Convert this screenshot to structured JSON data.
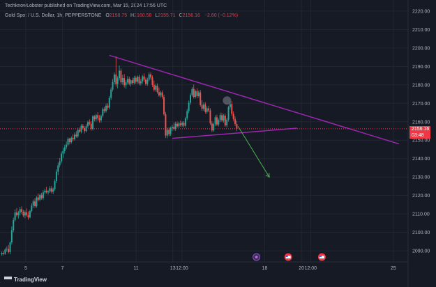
{
  "header": {
    "publisher": "TechknowLobster published on TradingView.com, Mar 15, 2024 17:56 UTC"
  },
  "symbol_bar": {
    "title": "Gold Spot / U.S. Dollar, 1h, PEPPERSTONE",
    "o_label": "O",
    "o_value": "2158.75",
    "h_label": "H",
    "h_value": "2160.58",
    "l_label": "L",
    "l_value": "2155.71",
    "c_label": "C",
    "c_value": "2156.16",
    "change": "−2.60 (−0.12%)"
  },
  "price_tag": {
    "price": "2156.16",
    "countdown": "03:48"
  },
  "footer": {
    "logo_text": "TradingView"
  },
  "colors": {
    "background": "#161a25",
    "up": "#26a69a",
    "down": "#ef5350",
    "trendline": "#9c27b0",
    "arrow": "#4caf50",
    "price_line": "#f23645"
  },
  "chart_data": {
    "type": "candlestick",
    "y_axis_labels": [
      2220,
      2210,
      2200,
      2190,
      2180,
      2170,
      2160,
      2150,
      2140,
      2130,
      2120,
      2110,
      2100,
      2090
    ],
    "ylim": [
      2084,
      2226
    ],
    "x_axis_labels": [
      "5",
      "7",
      "11",
      "13",
      "12:00",
      "18",
      "20",
      "12:00",
      "25"
    ],
    "x_axis_positions": [
      5,
      7,
      11,
      13,
      13.5,
      18,
      20,
      20.5,
      25
    ],
    "xlim": [
      3.6,
      25.8
    ],
    "grid": true,
    "price_line_value": 2156.16,
    "candle_width_units": 0.075,
    "candles": [
      {
        "x": 3.7,
        "o": 2088.2,
        "h": 2089.6,
        "l": 2087.4,
        "c": 2088.9
      },
      {
        "x": 3.79,
        "o": 2088.9,
        "h": 2090.0,
        "l": 2087.6,
        "c": 2088.4
      },
      {
        "x": 3.88,
        "o": 2088.4,
        "h": 2091.5,
        "l": 2087.9,
        "c": 2090.8
      },
      {
        "x": 3.97,
        "o": 2090.8,
        "h": 2092.4,
        "l": 2089.5,
        "c": 2091.1
      },
      {
        "x": 4.06,
        "o": 2091.1,
        "h": 2093.2,
        "l": 2088.6,
        "c": 2089.3
      },
      {
        "x": 4.15,
        "o": 2089.3,
        "h": 2095.2,
        "l": 2088.2,
        "c": 2094.6
      },
      {
        "x": 4.24,
        "o": 2094.6,
        "h": 2103.2,
        "l": 2093.5,
        "c": 2101.2
      },
      {
        "x": 4.33,
        "o": 2101.2,
        "h": 2108.0,
        "l": 2100.1,
        "c": 2106.7
      },
      {
        "x": 4.42,
        "o": 2106.7,
        "h": 2112.5,
        "l": 2105.8,
        "c": 2110.8
      },
      {
        "x": 4.51,
        "o": 2110.8,
        "h": 2113.2,
        "l": 2108.4,
        "c": 2109.3
      },
      {
        "x": 4.6,
        "o": 2109.3,
        "h": 2111.6,
        "l": 2107.5,
        "c": 2110.7
      },
      {
        "x": 4.69,
        "o": 2110.7,
        "h": 2113.8,
        "l": 2109.2,
        "c": 2112.6
      },
      {
        "x": 4.78,
        "o": 2112.6,
        "h": 2114.1,
        "l": 2110.1,
        "c": 2111.2
      },
      {
        "x": 4.87,
        "o": 2111.2,
        "h": 2112.2,
        "l": 2108.3,
        "c": 2109.2
      },
      {
        "x": 4.96,
        "o": 2109.2,
        "h": 2111.9,
        "l": 2107.7,
        "c": 2110.9
      },
      {
        "x": 5.05,
        "o": 2110.9,
        "h": 2113.0,
        "l": 2108.6,
        "c": 2109.4
      },
      {
        "x": 5.14,
        "o": 2109.4,
        "h": 2111.4,
        "l": 2106.9,
        "c": 2108.1
      },
      {
        "x": 5.23,
        "o": 2108.1,
        "h": 2112.3,
        "l": 2107.6,
        "c": 2111.6
      },
      {
        "x": 5.32,
        "o": 2111.6,
        "h": 2115.8,
        "l": 2110.8,
        "c": 2114.5
      },
      {
        "x": 5.41,
        "o": 2114.5,
        "h": 2117.8,
        "l": 2113.3,
        "c": 2116.8
      },
      {
        "x": 5.5,
        "o": 2116.8,
        "h": 2118.5,
        "l": 2113.3,
        "c": 2114.2
      },
      {
        "x": 5.59,
        "o": 2114.2,
        "h": 2119.7,
        "l": 2113.4,
        "c": 2118.9
      },
      {
        "x": 5.68,
        "o": 2118.9,
        "h": 2121.1,
        "l": 2116.8,
        "c": 2117.7
      },
      {
        "x": 5.77,
        "o": 2117.7,
        "h": 2121.0,
        "l": 2116.9,
        "c": 2120.3
      },
      {
        "x": 5.86,
        "o": 2120.3,
        "h": 2121.4,
        "l": 2117.8,
        "c": 2118.6
      },
      {
        "x": 5.95,
        "o": 2118.6,
        "h": 2122.9,
        "l": 2117.5,
        "c": 2121.7
      },
      {
        "x": 6.04,
        "o": 2121.7,
        "h": 2123.8,
        "l": 2120.8,
        "c": 2122.6
      },
      {
        "x": 6.13,
        "o": 2122.6,
        "h": 2124.7,
        "l": 2121.1,
        "c": 2121.7
      },
      {
        "x": 6.22,
        "o": 2121.7,
        "h": 2123.1,
        "l": 2120.5,
        "c": 2122.3
      },
      {
        "x": 6.31,
        "o": 2122.3,
        "h": 2125.1,
        "l": 2121.4,
        "c": 2123.9
      },
      {
        "x": 6.4,
        "o": 2123.9,
        "h": 2125.1,
        "l": 2121.2,
        "c": 2122.1
      },
      {
        "x": 6.49,
        "o": 2122.1,
        "h": 2124.3,
        "l": 2120.9,
        "c": 2123.4
      },
      {
        "x": 6.58,
        "o": 2123.4,
        "h": 2128.8,
        "l": 2122.6,
        "c": 2127.8
      },
      {
        "x": 6.67,
        "o": 2127.8,
        "h": 2134.2,
        "l": 2126.7,
        "c": 2132.9
      },
      {
        "x": 6.76,
        "o": 2132.9,
        "h": 2137.8,
        "l": 2131.1,
        "c": 2136.4
      },
      {
        "x": 6.85,
        "o": 2136.4,
        "h": 2140.3,
        "l": 2135.2,
        "c": 2138.6
      },
      {
        "x": 6.94,
        "o": 2138.6,
        "h": 2143.8,
        "l": 2137.5,
        "c": 2142.7
      },
      {
        "x": 7.03,
        "o": 2142.7,
        "h": 2145.8,
        "l": 2140.4,
        "c": 2144.1
      },
      {
        "x": 7.12,
        "o": 2144.1,
        "h": 2147.6,
        "l": 2142.7,
        "c": 2146.2
      },
      {
        "x": 7.21,
        "o": 2146.2,
        "h": 2149.3,
        "l": 2145.1,
        "c": 2147.6
      },
      {
        "x": 7.3,
        "o": 2147.6,
        "h": 2151.5,
        "l": 2146.8,
        "c": 2150.8
      },
      {
        "x": 7.39,
        "o": 2150.8,
        "h": 2151.3,
        "l": 2147.7,
        "c": 2148.9
      },
      {
        "x": 7.48,
        "o": 2148.9,
        "h": 2152.0,
        "l": 2148.1,
        "c": 2151.3
      },
      {
        "x": 7.57,
        "o": 2151.3,
        "h": 2153.2,
        "l": 2149.4,
        "c": 2150.5
      },
      {
        "x": 7.66,
        "o": 2150.5,
        "h": 2154.2,
        "l": 2149.7,
        "c": 2153.0
      },
      {
        "x": 7.75,
        "o": 2153.0,
        "h": 2154.9,
        "l": 2151.4,
        "c": 2152.1
      },
      {
        "x": 7.84,
        "o": 2152.1,
        "h": 2156.8,
        "l": 2151.2,
        "c": 2155.6
      },
      {
        "x": 7.93,
        "o": 2155.6,
        "h": 2156.9,
        "l": 2153.9,
        "c": 2154.6
      },
      {
        "x": 8.02,
        "o": 2154.6,
        "h": 2158.8,
        "l": 2153.7,
        "c": 2157.8
      },
      {
        "x": 8.11,
        "o": 2157.8,
        "h": 2158.8,
        "l": 2155.7,
        "c": 2156.5
      },
      {
        "x": 8.2,
        "o": 2156.5,
        "h": 2157.6,
        "l": 2153.7,
        "c": 2154.9
      },
      {
        "x": 8.29,
        "o": 2154.9,
        "h": 2158.7,
        "l": 2154.2,
        "c": 2157.6
      },
      {
        "x": 8.38,
        "o": 2157.6,
        "h": 2160.6,
        "l": 2156.6,
        "c": 2159.8
      },
      {
        "x": 8.47,
        "o": 2159.8,
        "h": 2161.3,
        "l": 2158.0,
        "c": 2158.9
      },
      {
        "x": 8.56,
        "o": 2158.9,
        "h": 2160.3,
        "l": 2155.1,
        "c": 2156.2
      },
      {
        "x": 8.65,
        "o": 2156.2,
        "h": 2163.7,
        "l": 2155.3,
        "c": 2162.9
      },
      {
        "x": 8.74,
        "o": 2162.9,
        "h": 2163.6,
        "l": 2160.2,
        "c": 2161.3
      },
      {
        "x": 8.83,
        "o": 2161.3,
        "h": 2164.3,
        "l": 2160.1,
        "c": 2163.6
      },
      {
        "x": 8.92,
        "o": 2163.6,
        "h": 2165.2,
        "l": 2160.6,
        "c": 2162.0
      },
      {
        "x": 9.01,
        "o": 2162.0,
        "h": 2163.6,
        "l": 2159.5,
        "c": 2160.8
      },
      {
        "x": 9.1,
        "o": 2160.8,
        "h": 2164.0,
        "l": 2159.6,
        "c": 2163.2
      },
      {
        "x": 9.19,
        "o": 2163.2,
        "h": 2167.8,
        "l": 2162.3,
        "c": 2166.9
      },
      {
        "x": 9.28,
        "o": 2166.9,
        "h": 2168.1,
        "l": 2164.7,
        "c": 2165.8
      },
      {
        "x": 9.37,
        "o": 2165.8,
        "h": 2169.8,
        "l": 2164.9,
        "c": 2168.7
      },
      {
        "x": 9.46,
        "o": 2168.7,
        "h": 2170.0,
        "l": 2166.4,
        "c": 2167.6
      },
      {
        "x": 9.55,
        "o": 2167.6,
        "h": 2174.0,
        "l": 2166.7,
        "c": 2172.9
      },
      {
        "x": 9.64,
        "o": 2172.9,
        "h": 2178.6,
        "l": 2171.8,
        "c": 2177.4
      },
      {
        "x": 9.73,
        "o": 2177.4,
        "h": 2183.2,
        "l": 2176.4,
        "c": 2181.5
      },
      {
        "x": 9.82,
        "o": 2181.5,
        "h": 2186.7,
        "l": 2180.1,
        "c": 2185.6
      },
      {
        "x": 9.91,
        "o": 2185.6,
        "h": 2195.5,
        "l": 2179.0,
        "c": 2180.4
      },
      {
        "x": 10.0,
        "o": 2180.4,
        "h": 2184.7,
        "l": 2178.1,
        "c": 2183.6
      },
      {
        "x": 10.09,
        "o": 2183.6,
        "h": 2190.5,
        "l": 2182.4,
        "c": 2187.7
      },
      {
        "x": 10.18,
        "o": 2187.7,
        "h": 2188.9,
        "l": 2180.2,
        "c": 2181.4
      },
      {
        "x": 10.27,
        "o": 2181.4,
        "h": 2185.4,
        "l": 2180.1,
        "c": 2183.7
      },
      {
        "x": 10.36,
        "o": 2183.7,
        "h": 2185.9,
        "l": 2178.6,
        "c": 2179.8
      },
      {
        "x": 10.45,
        "o": 2179.8,
        "h": 2182.5,
        "l": 2177.9,
        "c": 2181.3
      },
      {
        "x": 10.54,
        "o": 2181.3,
        "h": 2184.8,
        "l": 2180.2,
        "c": 2183.2
      },
      {
        "x": 10.63,
        "o": 2183.2,
        "h": 2184.4,
        "l": 2179.8,
        "c": 2180.6
      },
      {
        "x": 10.72,
        "o": 2180.6,
        "h": 2183.1,
        "l": 2179.1,
        "c": 2182.5
      },
      {
        "x": 10.81,
        "o": 2182.5,
        "h": 2183.9,
        "l": 2180.0,
        "c": 2181.0
      },
      {
        "x": 10.9,
        "o": 2181.0,
        "h": 2184.9,
        "l": 2180.2,
        "c": 2183.8
      },
      {
        "x": 10.99,
        "o": 2183.8,
        "h": 2184.7,
        "l": 2180.6,
        "c": 2181.7
      },
      {
        "x": 11.08,
        "o": 2181.7,
        "h": 2185.2,
        "l": 2180.5,
        "c": 2184.4
      },
      {
        "x": 11.17,
        "o": 2184.4,
        "h": 2185.5,
        "l": 2179.8,
        "c": 2180.8
      },
      {
        "x": 11.26,
        "o": 2180.8,
        "h": 2183.2,
        "l": 2179.6,
        "c": 2182.0
      },
      {
        "x": 11.35,
        "o": 2182.0,
        "h": 2185.4,
        "l": 2180.7,
        "c": 2184.6
      },
      {
        "x": 11.44,
        "o": 2184.6,
        "h": 2186.2,
        "l": 2181.6,
        "c": 2182.8
      },
      {
        "x": 11.53,
        "o": 2182.8,
        "h": 2184.0,
        "l": 2179.6,
        "c": 2180.5
      },
      {
        "x": 11.62,
        "o": 2180.5,
        "h": 2183.9,
        "l": 2179.5,
        "c": 2182.8
      },
      {
        "x": 11.71,
        "o": 2182.8,
        "h": 2186.8,
        "l": 2181.9,
        "c": 2185.7
      },
      {
        "x": 11.8,
        "o": 2185.7,
        "h": 2186.8,
        "l": 2182.8,
        "c": 2184.0
      },
      {
        "x": 11.89,
        "o": 2184.0,
        "h": 2185.1,
        "l": 2178.8,
        "c": 2180.0
      },
      {
        "x": 11.98,
        "o": 2180.0,
        "h": 2182.3,
        "l": 2176.4,
        "c": 2177.4
      },
      {
        "x": 12.07,
        "o": 2177.4,
        "h": 2180.5,
        "l": 2176.3,
        "c": 2179.5
      },
      {
        "x": 12.16,
        "o": 2179.5,
        "h": 2180.8,
        "l": 2175.2,
        "c": 2176.1
      },
      {
        "x": 12.25,
        "o": 2176.1,
        "h": 2178.5,
        "l": 2173.5,
        "c": 2174.3
      },
      {
        "x": 12.34,
        "o": 2174.3,
        "h": 2176.8,
        "l": 2173.1,
        "c": 2175.9
      },
      {
        "x": 12.43,
        "o": 2175.9,
        "h": 2177.0,
        "l": 2172.3,
        "c": 2173.4
      },
      {
        "x": 12.52,
        "o": 2173.4,
        "h": 2174.7,
        "l": 2163.2,
        "c": 2164.1
      },
      {
        "x": 12.61,
        "o": 2164.1,
        "h": 2165.3,
        "l": 2151.2,
        "c": 2152.5
      },
      {
        "x": 12.7,
        "o": 2152.5,
        "h": 2156.8,
        "l": 2151.0,
        "c": 2155.6
      },
      {
        "x": 12.79,
        "o": 2155.6,
        "h": 2157.0,
        "l": 2152.1,
        "c": 2153.2
      },
      {
        "x": 12.88,
        "o": 2153.2,
        "h": 2157.4,
        "l": 2152.3,
        "c": 2156.5
      },
      {
        "x": 12.97,
        "o": 2156.5,
        "h": 2158.4,
        "l": 2154.9,
        "c": 2157.3
      },
      {
        "x": 13.06,
        "o": 2157.3,
        "h": 2159.6,
        "l": 2155.2,
        "c": 2156.1
      },
      {
        "x": 13.15,
        "o": 2156.1,
        "h": 2159.9,
        "l": 2155.0,
        "c": 2158.9
      },
      {
        "x": 13.24,
        "o": 2158.9,
        "h": 2160.2,
        "l": 2156.8,
        "c": 2157.5
      },
      {
        "x": 13.33,
        "o": 2157.5,
        "h": 2160.0,
        "l": 2156.6,
        "c": 2159.1
      },
      {
        "x": 13.42,
        "o": 2159.1,
        "h": 2160.6,
        "l": 2157.3,
        "c": 2158.2
      },
      {
        "x": 13.51,
        "o": 2158.2,
        "h": 2160.2,
        "l": 2157.2,
        "c": 2159.5
      },
      {
        "x": 13.6,
        "o": 2159.5,
        "h": 2160.4,
        "l": 2156.9,
        "c": 2157.8
      },
      {
        "x": 13.69,
        "o": 2157.8,
        "h": 2162.7,
        "l": 2156.8,
        "c": 2161.9
      },
      {
        "x": 13.78,
        "o": 2161.9,
        "h": 2166.9,
        "l": 2160.8,
        "c": 2165.8
      },
      {
        "x": 13.87,
        "o": 2165.8,
        "h": 2171.4,
        "l": 2164.6,
        "c": 2170.3
      },
      {
        "x": 13.96,
        "o": 2170.3,
        "h": 2175.5,
        "l": 2169.2,
        "c": 2174.4
      },
      {
        "x": 14.05,
        "o": 2174.4,
        "h": 2178.8,
        "l": 2173.6,
        "c": 2177.8
      },
      {
        "x": 14.14,
        "o": 2177.8,
        "h": 2180.2,
        "l": 2172.6,
        "c": 2173.5
      },
      {
        "x": 14.23,
        "o": 2173.5,
        "h": 2177.4,
        "l": 2172.6,
        "c": 2176.6
      },
      {
        "x": 14.32,
        "o": 2176.6,
        "h": 2178.2,
        "l": 2172.9,
        "c": 2173.9
      },
      {
        "x": 14.41,
        "o": 2173.9,
        "h": 2177.0,
        "l": 2173.1,
        "c": 2175.9
      },
      {
        "x": 14.5,
        "o": 2175.9,
        "h": 2177.2,
        "l": 2168.2,
        "c": 2169.1
      },
      {
        "x": 14.59,
        "o": 2169.1,
        "h": 2171.6,
        "l": 2165.8,
        "c": 2167.0
      },
      {
        "x": 14.68,
        "o": 2167.0,
        "h": 2170.5,
        "l": 2166.0,
        "c": 2169.4
      },
      {
        "x": 14.77,
        "o": 2169.4,
        "h": 2170.6,
        "l": 2164.4,
        "c": 2165.3
      },
      {
        "x": 14.86,
        "o": 2165.3,
        "h": 2168.4,
        "l": 2164.3,
        "c": 2167.3
      },
      {
        "x": 14.95,
        "o": 2167.3,
        "h": 2168.7,
        "l": 2165.1,
        "c": 2166.1
      },
      {
        "x": 15.04,
        "o": 2166.1,
        "h": 2167.3,
        "l": 2158.2,
        "c": 2159.1
      },
      {
        "x": 15.13,
        "o": 2159.1,
        "h": 2160.3,
        "l": 2154.4,
        "c": 2155.3
      },
      {
        "x": 15.22,
        "o": 2155.3,
        "h": 2159.6,
        "l": 2154.6,
        "c": 2158.7
      },
      {
        "x": 15.31,
        "o": 2158.7,
        "h": 2163.5,
        "l": 2157.6,
        "c": 2162.4
      },
      {
        "x": 15.4,
        "o": 2162.4,
        "h": 2163.8,
        "l": 2157.7,
        "c": 2158.5
      },
      {
        "x": 15.49,
        "o": 2158.5,
        "h": 2161.7,
        "l": 2157.5,
        "c": 2160.9
      },
      {
        "x": 15.58,
        "o": 2160.9,
        "h": 2165.0,
        "l": 2159.8,
        "c": 2163.6
      },
      {
        "x": 15.67,
        "o": 2163.6,
        "h": 2164.8,
        "l": 2159.8,
        "c": 2160.7
      },
      {
        "x": 15.76,
        "o": 2160.7,
        "h": 2164.2,
        "l": 2159.6,
        "c": 2163.3
      },
      {
        "x": 15.85,
        "o": 2163.3,
        "h": 2164.4,
        "l": 2157.2,
        "c": 2158.0
      },
      {
        "x": 15.94,
        "o": 2158.0,
        "h": 2162.1,
        "l": 2156.9,
        "c": 2161.1
      },
      {
        "x": 16.03,
        "o": 2161.1,
        "h": 2168.7,
        "l": 2160.1,
        "c": 2167.9
      },
      {
        "x": 16.12,
        "o": 2167.9,
        "h": 2170.8,
        "l": 2166.6,
        "c": 2169.6
      },
      {
        "x": 16.21,
        "o": 2169.6,
        "h": 2171.2,
        "l": 2163.1,
        "c": 2164.3
      },
      {
        "x": 16.3,
        "o": 2164.3,
        "h": 2165.6,
        "l": 2160.4,
        "c": 2161.5
      },
      {
        "x": 16.39,
        "o": 2161.5,
        "h": 2163.0,
        "l": 2157.7,
        "c": 2158.8
      },
      {
        "x": 16.48,
        "o": 2158.8,
        "h": 2160.5,
        "l": 2155.0,
        "c": 2156.2
      }
    ],
    "annotations": {
      "resistance_line": {
        "x1": 9.55,
        "y1": 2196.0,
        "x2": 25.3,
        "y2": 2148.0
      },
      "support_line": {
        "x1": 12.97,
        "y1": 2151.0,
        "x2": 19.76,
        "y2": 2156.5
      },
      "projection_arrow": {
        "x1": 16.55,
        "y1": 2157.5,
        "x2": 18.25,
        "y2": 2130.0
      },
      "event_marker": {
        "x": 15.95,
        "y": 2171.5
      },
      "calendar_icons": [
        {
          "x": 17.55,
          "type": "cyclone"
        },
        {
          "x": 19.28,
          "type": "flag"
        },
        {
          "x": 21.11,
          "type": "flag"
        }
      ]
    }
  }
}
